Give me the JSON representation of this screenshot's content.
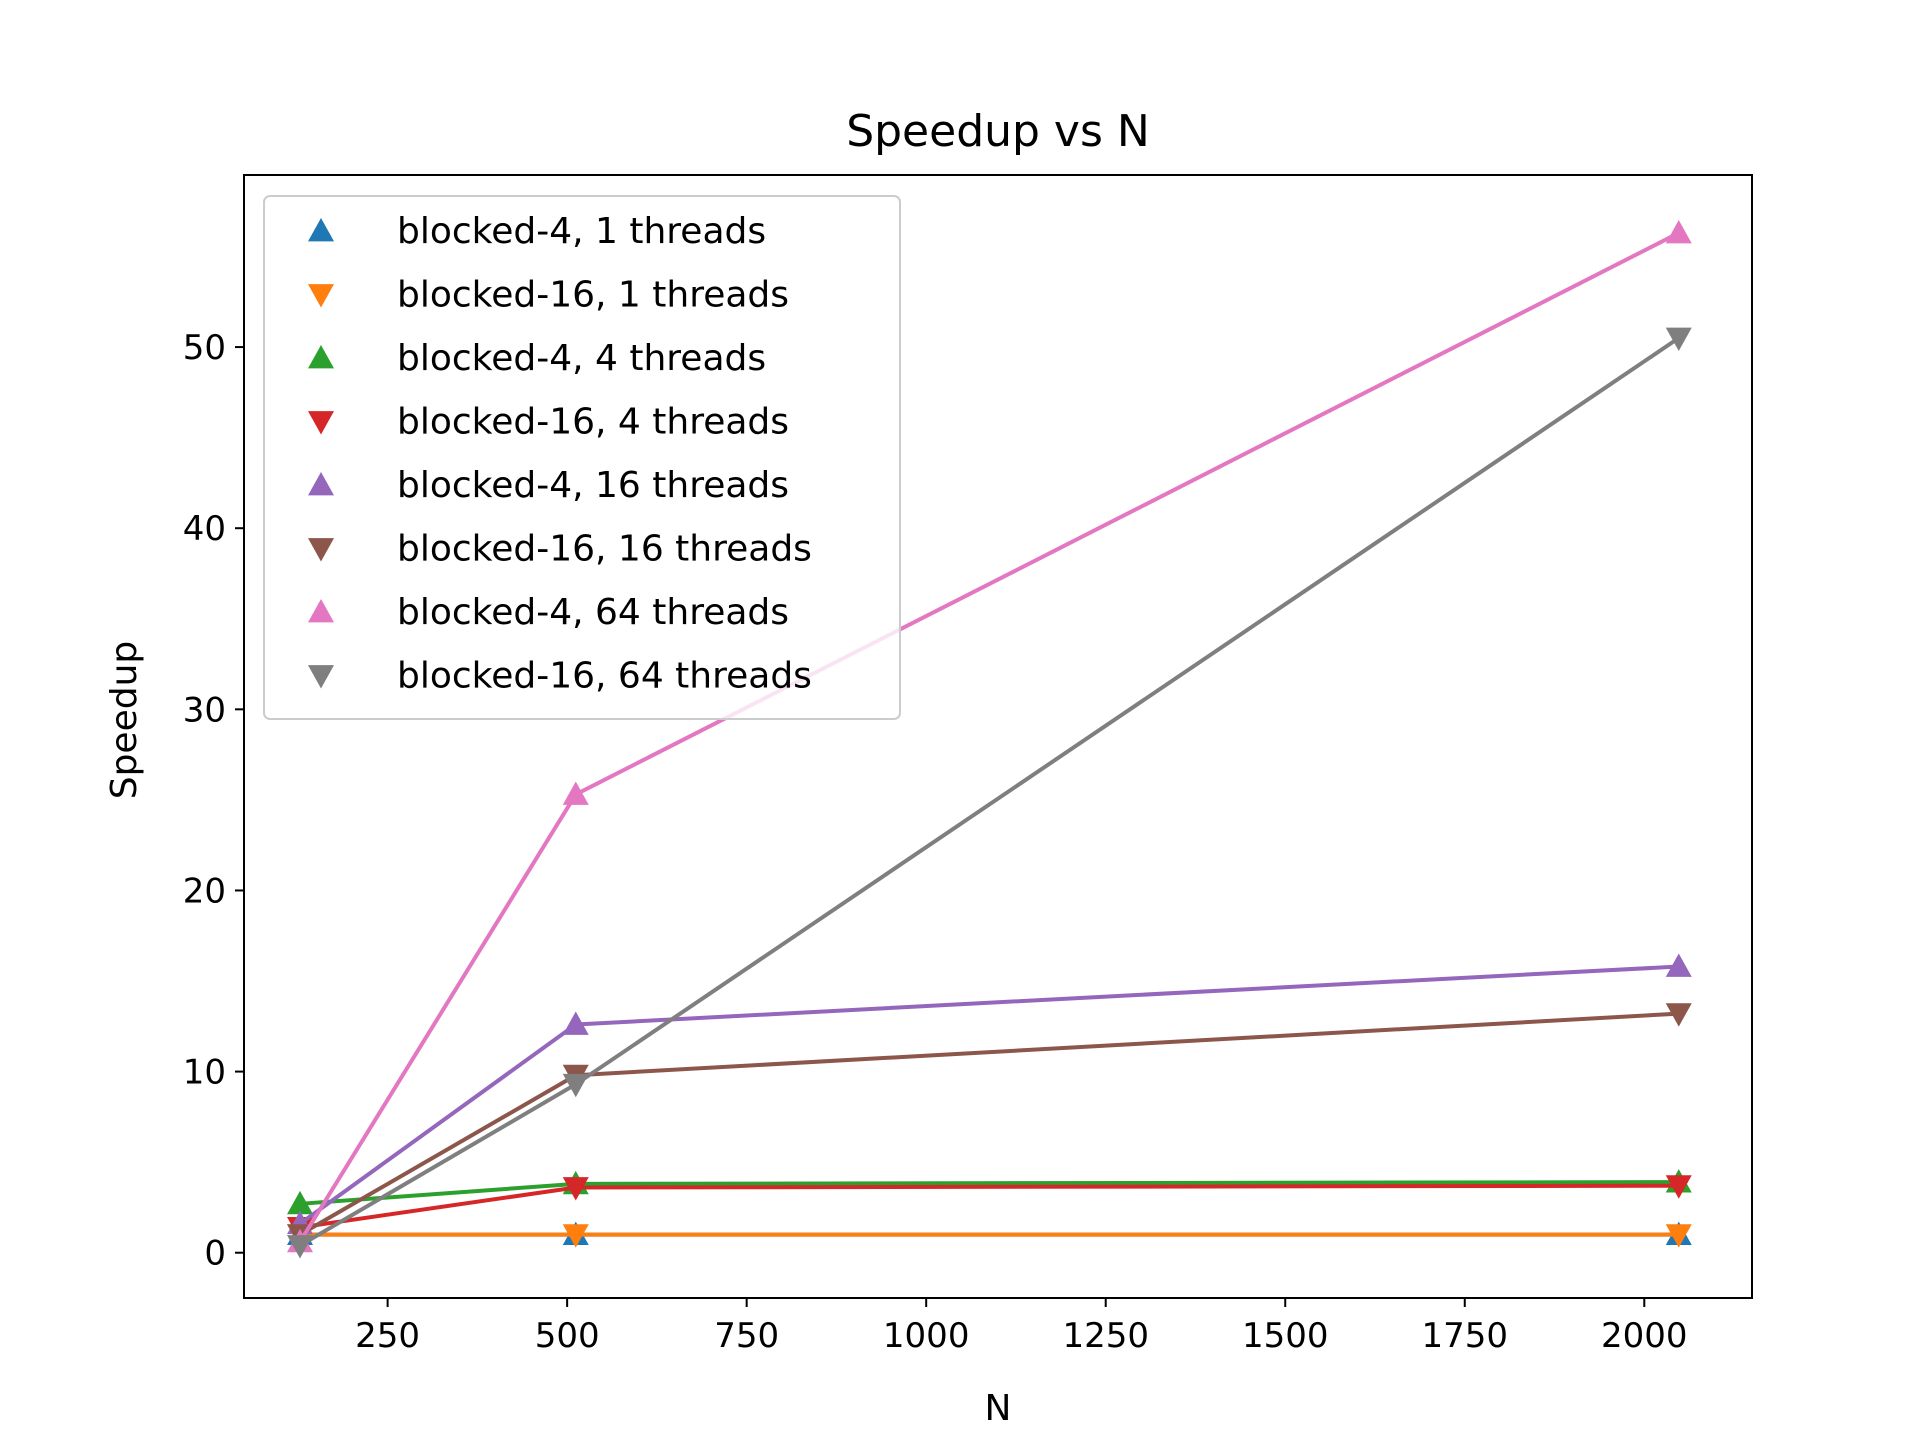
{
  "chart_data": {
    "type": "line",
    "title": "Speedup vs N",
    "xlabel": "N",
    "ylabel": "Speedup",
    "xlim": [
      50,
      2150
    ],
    "ylim": [
      -2.5,
      59.5
    ],
    "xticks": [
      250,
      500,
      750,
      1000,
      1250,
      1500,
      1750,
      2000
    ],
    "yticks": [
      0,
      10,
      20,
      30,
      40,
      50
    ],
    "grid": false,
    "legend_position": "top-left",
    "x": [
      128,
      512,
      2048
    ],
    "series": [
      {
        "name": "blocked-4, 1 threads",
        "marker": "triangle-up",
        "color": "#1f77b4",
        "values": [
          1.0,
          1.0,
          1.0
        ]
      },
      {
        "name": "blocked-16, 1 threads",
        "marker": "triangle-down",
        "color": "#ff7f0e",
        "values": [
          1.0,
          1.0,
          1.0
        ]
      },
      {
        "name": "blocked-4, 4 threads",
        "marker": "triangle-up",
        "color": "#2ca02c",
        "values": [
          2.7,
          3.8,
          3.9
        ]
      },
      {
        "name": "blocked-16, 4 threads",
        "marker": "triangle-down",
        "color": "#d62728",
        "values": [
          1.4,
          3.6,
          3.7
        ]
      },
      {
        "name": "blocked-4, 16 threads",
        "marker": "triangle-up",
        "color": "#9467bd",
        "values": [
          1.6,
          12.6,
          15.8
        ]
      },
      {
        "name": "blocked-16, 16 threads",
        "marker": "triangle-down",
        "color": "#8c564b",
        "values": [
          1.0,
          9.8,
          13.2
        ]
      },
      {
        "name": "blocked-4, 64 threads",
        "marker": "triangle-up",
        "color": "#e377c2",
        "values": [
          0.6,
          25.3,
          56.3
        ]
      },
      {
        "name": "blocked-16, 64 threads",
        "marker": "triangle-down",
        "color": "#7f7f7f",
        "values": [
          0.4,
          9.3,
          50.5
        ]
      }
    ]
  }
}
